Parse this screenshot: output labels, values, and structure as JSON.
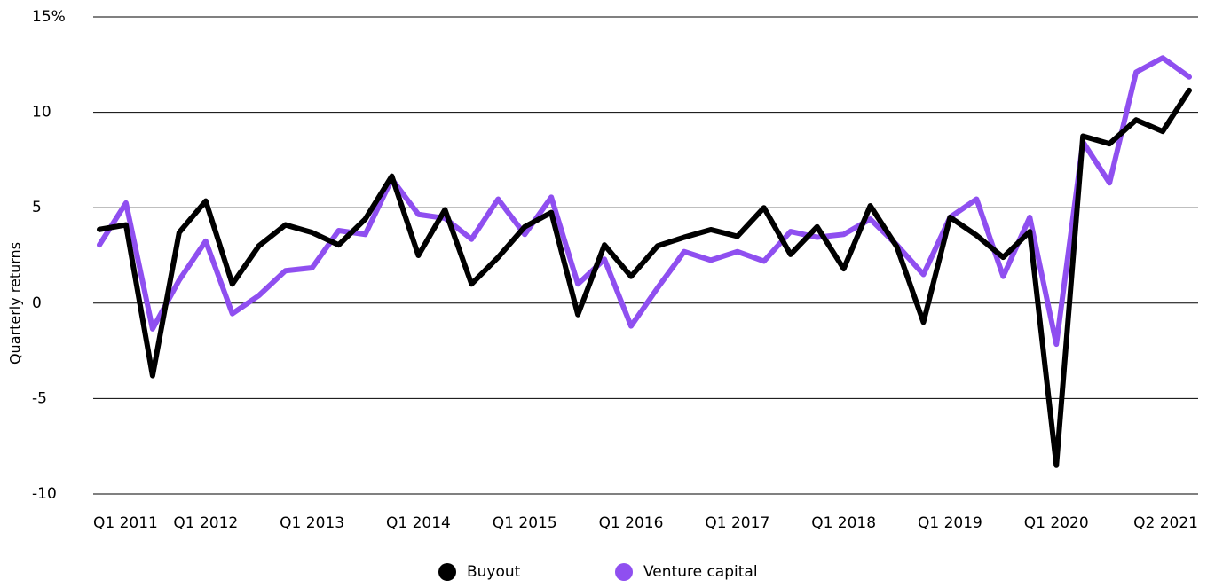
{
  "chart_data": {
    "type": "line",
    "y_label": "Quarterly returns",
    "categories": [
      "Q1 2011",
      null,
      null,
      null,
      "Q1 2012",
      null,
      null,
      null,
      "Q1 2013",
      null,
      null,
      null,
      "Q1 2014",
      null,
      null,
      null,
      "Q1 2015",
      null,
      null,
      null,
      "Q1 2016",
      null,
      null,
      null,
      "Q1 2017",
      null,
      null,
      null,
      "Q1 2018",
      null,
      null,
      null,
      "Q1 2019",
      null,
      null,
      null,
      "Q1 2020",
      null,
      null,
      null,
      null,
      "Q2 2021"
    ],
    "series": [
      {
        "name": "Venture capital",
        "color": "#8f4ff0",
        "values": [
          3.05,
          5.25,
          -1.35,
          1.2,
          3.25,
          -0.55,
          0.4,
          1.7,
          1.85,
          3.8,
          3.6,
          6.5,
          4.65,
          4.45,
          3.35,
          5.45,
          3.6,
          5.55,
          1.0,
          2.3,
          -1.2,
          0.8,
          2.7,
          2.25,
          2.7,
          2.2,
          3.75,
          3.45,
          3.6,
          4.4,
          3.05,
          1.5,
          4.5,
          5.45,
          1.4,
          4.5,
          -2.15,
          8.45,
          6.3,
          12.1,
          12.85,
          11.85
        ]
      },
      {
        "name": "Buyout",
        "color": "#000000",
        "values": [
          3.86,
          4.1,
          -3.8,
          3.7,
          5.35,
          1.0,
          3.0,
          4.1,
          3.7,
          3.05,
          4.4,
          6.65,
          2.5,
          4.9,
          1.0,
          2.4,
          4.0,
          4.75,
          -0.6,
          3.05,
          1.4,
          3.0,
          3.45,
          3.85,
          3.5,
          5.0,
          2.55,
          4.0,
          1.8,
          5.1,
          2.95,
          -1.0,
          4.5,
          3.55,
          2.4,
          3.75,
          -8.5,
          8.75,
          8.35,
          9.6,
          9.0,
          11.15
        ]
      }
    ],
    "legend_order": [
      "Buyout",
      "Venture capital"
    ],
    "ylim": [
      -10,
      15
    ],
    "yticks": [
      -10,
      -5,
      0,
      5,
      10,
      {
        "value": 15,
        "label": "15%"
      }
    ],
    "grid": true
  }
}
